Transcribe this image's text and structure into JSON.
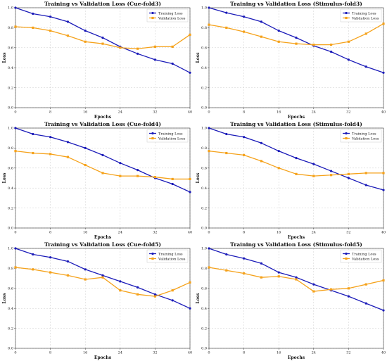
{
  "chart_data": [
    {
      "type": "line",
      "title": "Training vs Validation Loss (Cue-fold3)",
      "xlabel": "Epochs",
      "ylabel": "Loss",
      "xlim": [
        0,
        40
      ],
      "ylim": [
        0.0,
        1.0
      ],
      "xticks": [
        "0",
        "8",
        "16",
        "24",
        "32",
        "40"
      ],
      "yticks": [
        "0.0",
        "0.2",
        "0.4",
        "0.6",
        "0.8",
        "1.0"
      ],
      "grid": true,
      "legend": "top-right",
      "series": [
        {
          "name": "Training Loss",
          "color": "#1a1ab8",
          "x": [
            0,
            4,
            8,
            12,
            16,
            20,
            24,
            28,
            32,
            36,
            40
          ],
          "values": [
            1.0,
            0.94,
            0.91,
            0.86,
            0.77,
            0.7,
            0.61,
            0.54,
            0.48,
            0.44,
            0.35
          ]
        },
        {
          "name": "Validation Loss",
          "color": "#f5a21b",
          "x": [
            0,
            4,
            8,
            12,
            16,
            20,
            24,
            28,
            32,
            36,
            40
          ],
          "values": [
            0.81,
            0.8,
            0.77,
            0.72,
            0.66,
            0.64,
            0.6,
            0.59,
            0.61,
            0.61,
            0.73
          ]
        }
      ]
    },
    {
      "type": "line",
      "title": "Training vs Validation Loss (Stimulus-fold3)",
      "xlabel": "Epochs",
      "ylabel": "Loss",
      "xlim": [
        0,
        40
      ],
      "ylim": [
        0.0,
        1.0
      ],
      "xticks": [
        "0",
        "8",
        "16",
        "24",
        "32",
        "40"
      ],
      "yticks": [
        "0.0",
        "0.2",
        "0.4",
        "0.6",
        "0.8",
        "1.0"
      ],
      "grid": true,
      "legend": "top-right",
      "series": [
        {
          "name": "Training Loss",
          "color": "#1a1ab8",
          "x": [
            0,
            4,
            8,
            12,
            16,
            20,
            24,
            28,
            32,
            36,
            40
          ],
          "values": [
            1.0,
            0.95,
            0.91,
            0.86,
            0.77,
            0.7,
            0.62,
            0.56,
            0.48,
            0.41,
            0.35
          ]
        },
        {
          "name": "Validation Loss",
          "color": "#f5a21b",
          "x": [
            0,
            4,
            8,
            12,
            16,
            20,
            24,
            28,
            32,
            36,
            40
          ],
          "values": [
            0.83,
            0.8,
            0.76,
            0.71,
            0.66,
            0.64,
            0.63,
            0.63,
            0.66,
            0.74,
            0.84
          ]
        }
      ]
    },
    {
      "type": "line",
      "title": "Training vs Validation Loss (Cue-fold4)",
      "xlabel": "Epochs",
      "ylabel": "Loss",
      "xlim": [
        0,
        40
      ],
      "ylim": [
        0.0,
        1.0
      ],
      "xticks": [
        "0",
        "8",
        "16",
        "24",
        "32",
        "40"
      ],
      "yticks": [
        "0.0",
        "0.2",
        "0.4",
        "0.6",
        "0.8",
        "1.0"
      ],
      "grid": true,
      "legend": "top-right",
      "series": [
        {
          "name": "Training Loss",
          "color": "#1a1ab8",
          "x": [
            0,
            4,
            8,
            12,
            16,
            20,
            24,
            28,
            32,
            36,
            40
          ],
          "values": [
            1.0,
            0.94,
            0.91,
            0.86,
            0.8,
            0.73,
            0.65,
            0.58,
            0.5,
            0.44,
            0.36
          ]
        },
        {
          "name": "Validation Loss",
          "color": "#f5a21b",
          "x": [
            0,
            4,
            8,
            12,
            16,
            20,
            24,
            28,
            32,
            36,
            40
          ],
          "values": [
            0.77,
            0.75,
            0.74,
            0.71,
            0.63,
            0.55,
            0.52,
            0.52,
            0.51,
            0.49,
            0.49
          ]
        }
      ]
    },
    {
      "type": "line",
      "title": "Training vs Validation Loss (Stimulus-fold4)",
      "xlabel": "Epochs",
      "ylabel": "Loss",
      "xlim": [
        0,
        40
      ],
      "ylim": [
        0.0,
        1.0
      ],
      "xticks": [
        "0",
        "8",
        "16",
        "24",
        "32",
        "40"
      ],
      "yticks": [
        "0.0",
        "0.2",
        "0.4",
        "0.6",
        "0.8",
        "1.0"
      ],
      "grid": true,
      "legend": "top-right",
      "series": [
        {
          "name": "Training Loss",
          "color": "#1a1ab8",
          "x": [
            0,
            4,
            8,
            12,
            16,
            20,
            24,
            28,
            32,
            36,
            40
          ],
          "values": [
            1.0,
            0.94,
            0.91,
            0.85,
            0.77,
            0.7,
            0.64,
            0.57,
            0.5,
            0.43,
            0.38
          ]
        },
        {
          "name": "Validation Loss",
          "color": "#f5a21b",
          "x": [
            0,
            4,
            8,
            12,
            16,
            20,
            24,
            28,
            32,
            36,
            40
          ],
          "values": [
            0.77,
            0.75,
            0.73,
            0.67,
            0.6,
            0.54,
            0.52,
            0.53,
            0.54,
            0.55,
            0.55
          ]
        }
      ]
    },
    {
      "type": "line",
      "title": "Training vs Validation Loss (Cue-fold5)",
      "xlabel": "Epochs",
      "ylabel": "Loss",
      "xlim": [
        0,
        40
      ],
      "ylim": [
        0.0,
        1.0
      ],
      "xticks": [
        "0",
        "8",
        "16",
        "24",
        "32",
        "40"
      ],
      "yticks": [
        "0.0",
        "0.2",
        "0.4",
        "0.6",
        "0.8",
        "1.0"
      ],
      "grid": true,
      "legend": "top-right",
      "series": [
        {
          "name": "Training Loss",
          "color": "#1a1ab8",
          "x": [
            0,
            4,
            8,
            12,
            16,
            20,
            24,
            28,
            32,
            36,
            40
          ],
          "values": [
            1.0,
            0.94,
            0.91,
            0.87,
            0.79,
            0.73,
            0.67,
            0.61,
            0.54,
            0.48,
            0.4
          ]
        },
        {
          "name": "Validation Loss",
          "color": "#f5a21b",
          "x": [
            0,
            4,
            8,
            12,
            16,
            20,
            24,
            28,
            32,
            36,
            40
          ],
          "values": [
            0.81,
            0.79,
            0.76,
            0.73,
            0.69,
            0.71,
            0.58,
            0.54,
            0.52,
            0.58,
            0.66
          ]
        }
      ]
    },
    {
      "type": "line",
      "title": "Training vs Validation Loss (Stimulus-fold5)",
      "xlabel": "Epochs",
      "ylabel": "Loss",
      "xlim": [
        0,
        40
      ],
      "ylim": [
        0.0,
        1.0
      ],
      "xticks": [
        "0",
        "8",
        "16",
        "24",
        "32",
        "40"
      ],
      "yticks": [
        "0.0",
        "0.2",
        "0.4",
        "0.6",
        "0.8",
        "1.0"
      ],
      "grid": true,
      "legend": "top-right",
      "series": [
        {
          "name": "Training Loss",
          "color": "#1a1ab8",
          "x": [
            0,
            4,
            8,
            12,
            16,
            20,
            24,
            28,
            32,
            36,
            40
          ],
          "values": [
            1.0,
            0.94,
            0.9,
            0.85,
            0.76,
            0.71,
            0.64,
            0.58,
            0.52,
            0.45,
            0.38
          ]
        },
        {
          "name": "Validation Loss",
          "color": "#f5a21b",
          "x": [
            0,
            4,
            8,
            12,
            16,
            20,
            24,
            28,
            32,
            36,
            40
          ],
          "values": [
            0.81,
            0.78,
            0.75,
            0.71,
            0.72,
            0.69,
            0.57,
            0.59,
            0.6,
            0.64,
            0.68
          ]
        }
      ]
    }
  ]
}
